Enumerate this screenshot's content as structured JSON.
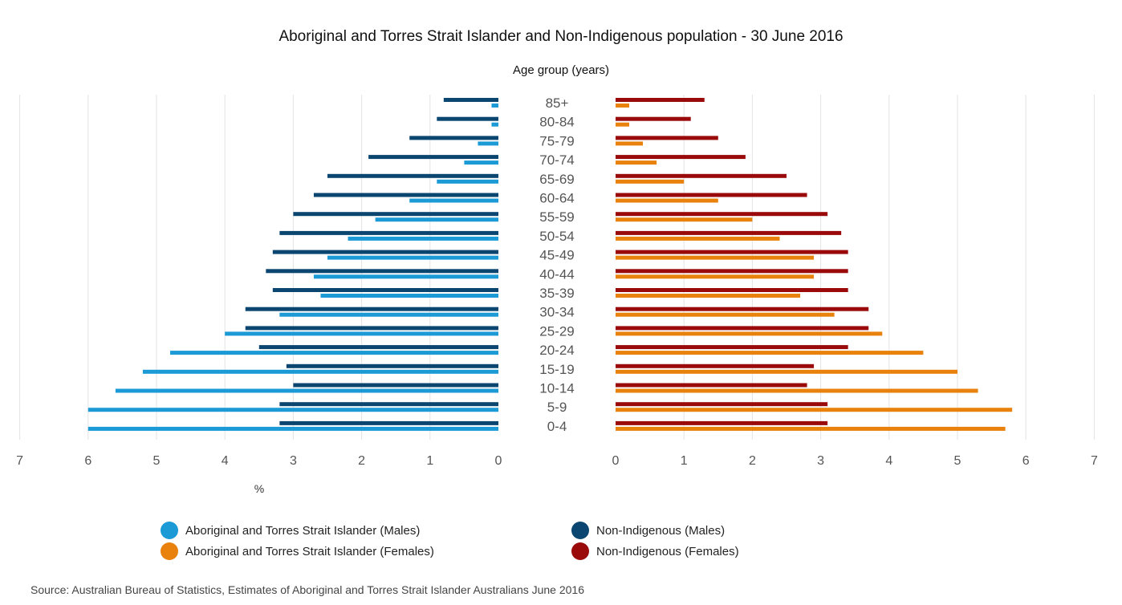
{
  "chart_data": {
    "type": "bar",
    "orientation": "horizontal",
    "layout": "population-pyramid",
    "title": "Aboriginal and Torres Strait Islander and Non-Indigenous population - 30 June 2016",
    "category_axis_title": "Age group (years)",
    "value_axis_label": "%",
    "xlim": [
      0,
      7
    ],
    "ticks": [
      "7",
      "6",
      "5",
      "4",
      "3",
      "2",
      "1",
      "0",
      "0",
      "1",
      "2",
      "3",
      "4",
      "5",
      "6",
      "7"
    ],
    "categories": [
      "85+",
      "80-84",
      "75-79",
      "70-74",
      "65-69",
      "60-64",
      "55-59",
      "50-54",
      "45-49",
      "40-44",
      "35-39",
      "30-34",
      "25-29",
      "20-24",
      "15-19",
      "10-14",
      "5-9",
      "0-4"
    ],
    "grid": true,
    "legend_position": "bottom",
    "series": [
      {
        "name": "Aboriginal and Torres Strait Islander (Males)",
        "side": "left",
        "color": "#1b9ad6",
        "values": [
          0.1,
          0.1,
          0.3,
          0.5,
          0.9,
          1.3,
          1.8,
          2.2,
          2.5,
          2.7,
          2.6,
          3.2,
          4.0,
          4.8,
          5.2,
          5.6,
          6.0,
          6.0
        ]
      },
      {
        "name": "Non-Indigenous (Males)",
        "side": "left",
        "color": "#0b4670",
        "values": [
          0.8,
          0.9,
          1.3,
          1.9,
          2.5,
          2.7,
          3.0,
          3.2,
          3.3,
          3.4,
          3.3,
          3.7,
          3.7,
          3.5,
          3.1,
          3.0,
          3.2,
          3.2
        ]
      },
      {
        "name": "Aboriginal and Torres Strait Islander (Females)",
        "side": "right",
        "color": "#e8820c",
        "values": [
          0.2,
          0.2,
          0.4,
          0.6,
          1.0,
          1.5,
          2.0,
          2.4,
          2.9,
          2.9,
          2.7,
          3.2,
          3.9,
          4.5,
          5.0,
          5.3,
          5.8,
          5.7
        ]
      },
      {
        "name": "Non-Indigenous (Females)",
        "side": "right",
        "color": "#9b0a0a",
        "values": [
          1.3,
          1.1,
          1.5,
          1.9,
          2.5,
          2.8,
          3.1,
          3.3,
          3.4,
          3.4,
          3.4,
          3.7,
          3.7,
          3.4,
          2.9,
          2.8,
          3.1,
          3.1
        ]
      }
    ]
  },
  "legend": {
    "items": [
      {
        "label": "Aboriginal and Torres Strait Islander (Males)",
        "color": "#1b9ad6"
      },
      {
        "label": "Aboriginal and Torres Strait Islander (Females)",
        "color": "#e8820c"
      },
      {
        "label": "Non-Indigenous (Males)",
        "color": "#0b4670"
      },
      {
        "label": "Non-Indigenous (Females)",
        "color": "#9b0a0a"
      }
    ]
  },
  "source": "Source: Australian Bureau of Statistics, Estimates of Aboriginal and Torres Strait Islander Australians June 2016"
}
